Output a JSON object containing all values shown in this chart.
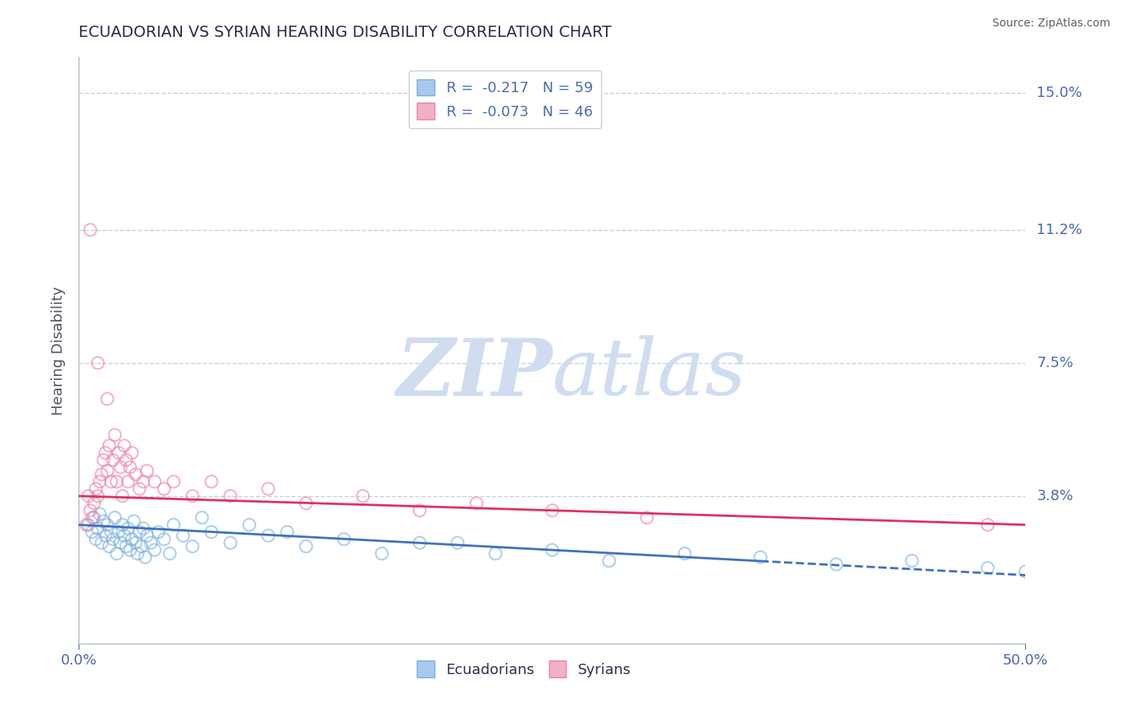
{
  "title": "ECUADORIAN VS SYRIAN HEARING DISABILITY CORRELATION CHART",
  "source": "Source: ZipAtlas.com",
  "ylabel": "Hearing Disability",
  "xlim": [
    0.0,
    0.5
  ],
  "ylim": [
    -0.003,
    0.16
  ],
  "ytick_vals": [
    0.038,
    0.075,
    0.112,
    0.15
  ],
  "ytick_labels": [
    "3.8%",
    "7.5%",
    "11.2%",
    "15.0%"
  ],
  "watermark_zip": "ZIP",
  "watermark_atlas": "atlas",
  "watermark_color": "#d0ddf0",
  "title_color": "#2a2a4a",
  "axis_color": "#4a6ab0",
  "grid_color": "#c8d0dc",
  "ecu_color": "#7ab0e0",
  "syr_color": "#f080a0",
  "ecu_edge": "#6090cc",
  "syr_edge": "#e06090",
  "ecu_trend_color": "#4070c0",
  "syr_trend_color": "#e03060",
  "legend1_blue_label": "R =  -0.217   N = 59",
  "legend1_pink_label": "R =  -0.073   N = 46",
  "legend1_blue_face": "#a8c8f0",
  "legend1_pink_face": "#f0b0c8",
  "legend_bottom_ecu": "Ecuadorians",
  "legend_bottom_syr": "Syrians",
  "ecu_scatter_x": [
    0.005,
    0.007,
    0.008,
    0.009,
    0.01,
    0.011,
    0.012,
    0.013,
    0.014,
    0.015,
    0.016,
    0.017,
    0.018,
    0.019,
    0.02,
    0.021,
    0.022,
    0.023,
    0.024,
    0.025,
    0.026,
    0.027,
    0.028,
    0.029,
    0.03,
    0.031,
    0.032,
    0.033,
    0.034,
    0.035,
    0.036,
    0.038,
    0.04,
    0.042,
    0.045,
    0.048,
    0.05,
    0.055,
    0.06,
    0.065,
    0.07,
    0.08,
    0.09,
    0.1,
    0.11,
    0.12,
    0.14,
    0.16,
    0.18,
    0.2,
    0.22,
    0.25,
    0.28,
    0.32,
    0.36,
    0.4,
    0.44,
    0.48,
    0.5
  ],
  "ecu_scatter_y": [
    0.03,
    0.028,
    0.032,
    0.026,
    0.029,
    0.033,
    0.025,
    0.031,
    0.027,
    0.03,
    0.024,
    0.028,
    0.026,
    0.032,
    0.022,
    0.028,
    0.025,
    0.03,
    0.027,
    0.024,
    0.029,
    0.023,
    0.026,
    0.031,
    0.025,
    0.022,
    0.028,
    0.024,
    0.029,
    0.021,
    0.027,
    0.025,
    0.023,
    0.028,
    0.026,
    0.022,
    0.03,
    0.027,
    0.024,
    0.032,
    0.028,
    0.025,
    0.03,
    0.027,
    0.028,
    0.024,
    0.026,
    0.022,
    0.025,
    0.025,
    0.022,
    0.023,
    0.02,
    0.022,
    0.021,
    0.019,
    0.02,
    0.018,
    0.017
  ],
  "syr_scatter_x": [
    0.004,
    0.005,
    0.006,
    0.007,
    0.008,
    0.009,
    0.01,
    0.011,
    0.012,
    0.013,
    0.014,
    0.015,
    0.016,
    0.017,
    0.018,
    0.019,
    0.02,
    0.021,
    0.022,
    0.023,
    0.024,
    0.025,
    0.026,
    0.027,
    0.028,
    0.03,
    0.032,
    0.034,
    0.036,
    0.04,
    0.045,
    0.05,
    0.06,
    0.07,
    0.08,
    0.1,
    0.12,
    0.15,
    0.18,
    0.21,
    0.25,
    0.3,
    0.48,
    0.006,
    0.01,
    0.015
  ],
  "syr_scatter_y": [
    0.03,
    0.038,
    0.034,
    0.032,
    0.036,
    0.04,
    0.038,
    0.042,
    0.044,
    0.048,
    0.05,
    0.045,
    0.052,
    0.042,
    0.048,
    0.055,
    0.042,
    0.05,
    0.046,
    0.038,
    0.052,
    0.048,
    0.042,
    0.046,
    0.05,
    0.044,
    0.04,
    0.042,
    0.045,
    0.042,
    0.04,
    0.042,
    0.038,
    0.042,
    0.038,
    0.04,
    0.036,
    0.038,
    0.034,
    0.036,
    0.034,
    0.032,
    0.03,
    0.112,
    0.075,
    0.065
  ],
  "ecu_trend_x0": 0.0,
  "ecu_trend_x_solid_end": 0.36,
  "ecu_trend_x1": 0.5,
  "ecu_trend_y0": 0.03,
  "ecu_trend_y1": 0.016,
  "syr_trend_x0": 0.0,
  "syr_trend_x1": 0.5,
  "syr_trend_y0": 0.038,
  "syr_trend_y1": 0.03
}
